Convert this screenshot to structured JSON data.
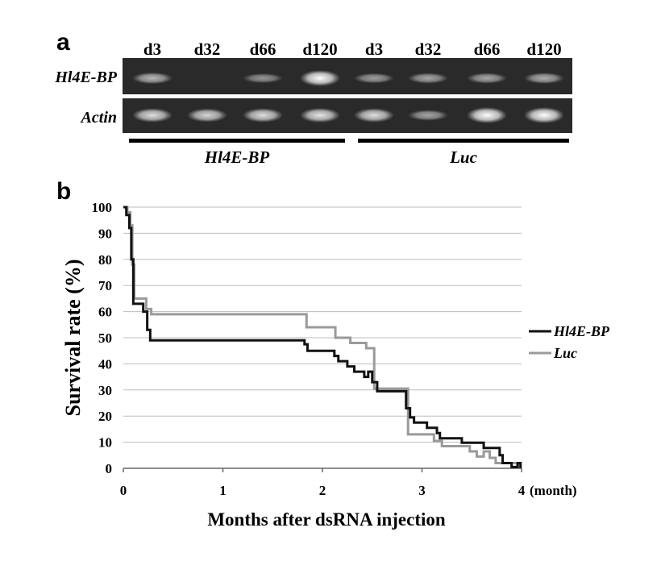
{
  "panel_a": {
    "label": "a",
    "lanes": [
      "d3",
      "d32",
      "d66",
      "d120",
      "d3",
      "d32",
      "d66",
      "d120"
    ],
    "rows": [
      {
        "label": "Hl4E-BP",
        "band_intensity": [
          0.55,
          0.0,
          0.35,
          1.0,
          0.4,
          0.45,
          0.45,
          0.5
        ]
      },
      {
        "label": "Actin",
        "band_intensity": [
          0.8,
          0.75,
          0.8,
          0.85,
          0.8,
          0.45,
          1.0,
          1.0
        ]
      }
    ],
    "groups": [
      {
        "label": "Hl4E-BP",
        "lanes": [
          0,
          3
        ]
      },
      {
        "label": "Luc",
        "lanes": [
          4,
          7
        ]
      }
    ],
    "colors": {
      "gel_bg": "#2a2a2a",
      "band": "#ffffff"
    }
  },
  "panel_b": {
    "label": "b",
    "month_unit": "(month)",
    "chart_data": {
      "type": "line",
      "xlabel": "Months after dsRNA injection",
      "ylabel": "Survival rate (%)",
      "xlim": [
        0,
        4
      ],
      "ylim": [
        0,
        100
      ],
      "xticks": [
        "0",
        "1",
        "2",
        "3",
        "4"
      ],
      "yticks": [
        "0",
        "10",
        "20",
        "30",
        "40",
        "50",
        "60",
        "70",
        "80",
        "90",
        "100"
      ],
      "grid": "horizontal",
      "legend_position": "right",
      "series": [
        {
          "name": "Hl4E-BP",
          "color": "#111111",
          "points": [
            [
              0,
              100
            ],
            [
              0.03,
              100
            ],
            [
              0.03,
              97
            ],
            [
              0.06,
              97
            ],
            [
              0.06,
              92
            ],
            [
              0.08,
              92
            ],
            [
              0.08,
              80
            ],
            [
              0.1,
              80
            ],
            [
              0.1,
              63
            ],
            [
              0.2,
              63
            ],
            [
              0.2,
              60
            ],
            [
              0.24,
              60
            ],
            [
              0.24,
              53
            ],
            [
              0.27,
              53
            ],
            [
              0.27,
              49
            ],
            [
              1.82,
              49
            ],
            [
              1.82,
              47.5
            ],
            [
              1.85,
              47.5
            ],
            [
              1.85,
              45
            ],
            [
              2.12,
              45
            ],
            [
              2.12,
              43
            ],
            [
              2.16,
              43
            ],
            [
              2.16,
              41
            ],
            [
              2.25,
              41
            ],
            [
              2.25,
              39
            ],
            [
              2.32,
              39
            ],
            [
              2.32,
              37
            ],
            [
              2.42,
              37
            ],
            [
              2.42,
              35
            ],
            [
              2.46,
              35
            ],
            [
              2.46,
              37
            ],
            [
              2.5,
              37
            ],
            [
              2.5,
              33
            ],
            [
              2.55,
              33
            ],
            [
              2.55,
              29.5
            ],
            [
              2.84,
              29.5
            ],
            [
              2.84,
              23
            ],
            [
              2.88,
              23
            ],
            [
              2.88,
              19.5
            ],
            [
              2.92,
              19.5
            ],
            [
              2.92,
              17.5
            ],
            [
              3.05,
              17.5
            ],
            [
              3.05,
              15.5
            ],
            [
              3.15,
              15.5
            ],
            [
              3.15,
              13.5
            ],
            [
              3.18,
              13.5
            ],
            [
              3.18,
              11.5
            ],
            [
              3.4,
              11.5
            ],
            [
              3.4,
              9.8
            ],
            [
              3.62,
              9.8
            ],
            [
              3.62,
              7.8
            ],
            [
              3.78,
              7.8
            ],
            [
              3.78,
              5
            ],
            [
              3.81,
              5
            ],
            [
              3.81,
              2
            ],
            [
              3.9,
              2
            ],
            [
              3.9,
              0.5
            ],
            [
              3.96,
              0.5
            ],
            [
              3.96,
              2
            ],
            [
              3.99,
              2
            ],
            [
              3.99,
              0
            ]
          ]
        },
        {
          "name": "Luc",
          "color": "#9a9a9a",
          "points": [
            [
              0,
              100
            ],
            [
              0.04,
              100
            ],
            [
              0.04,
              98
            ],
            [
              0.07,
              98
            ],
            [
              0.07,
              93
            ],
            [
              0.09,
              93
            ],
            [
              0.09,
              78
            ],
            [
              0.11,
              78
            ],
            [
              0.11,
              65
            ],
            [
              0.23,
              65
            ],
            [
              0.23,
              61
            ],
            [
              0.28,
              61
            ],
            [
              0.28,
              59
            ],
            [
              1.84,
              59
            ],
            [
              1.84,
              54
            ],
            [
              2.13,
              54
            ],
            [
              2.13,
              50
            ],
            [
              2.28,
              50
            ],
            [
              2.28,
              48
            ],
            [
              2.44,
              48
            ],
            [
              2.44,
              46
            ],
            [
              2.52,
              46
            ],
            [
              2.52,
              30.5
            ],
            [
              2.86,
              30.5
            ],
            [
              2.86,
              13
            ],
            [
              3.12,
              13
            ],
            [
              3.12,
              10.5
            ],
            [
              3.2,
              10.5
            ],
            [
              3.2,
              8.5
            ],
            [
              3.48,
              8.5
            ],
            [
              3.48,
              6.5
            ],
            [
              3.55,
              6.5
            ],
            [
              3.55,
              4.5
            ],
            [
              3.62,
              4.5
            ],
            [
              3.62,
              6.5
            ],
            [
              3.68,
              6.5
            ],
            [
              3.68,
              4
            ],
            [
              3.74,
              4
            ],
            [
              3.74,
              2
            ],
            [
              3.98,
              2
            ],
            [
              3.98,
              0
            ]
          ]
        }
      ]
    }
  }
}
